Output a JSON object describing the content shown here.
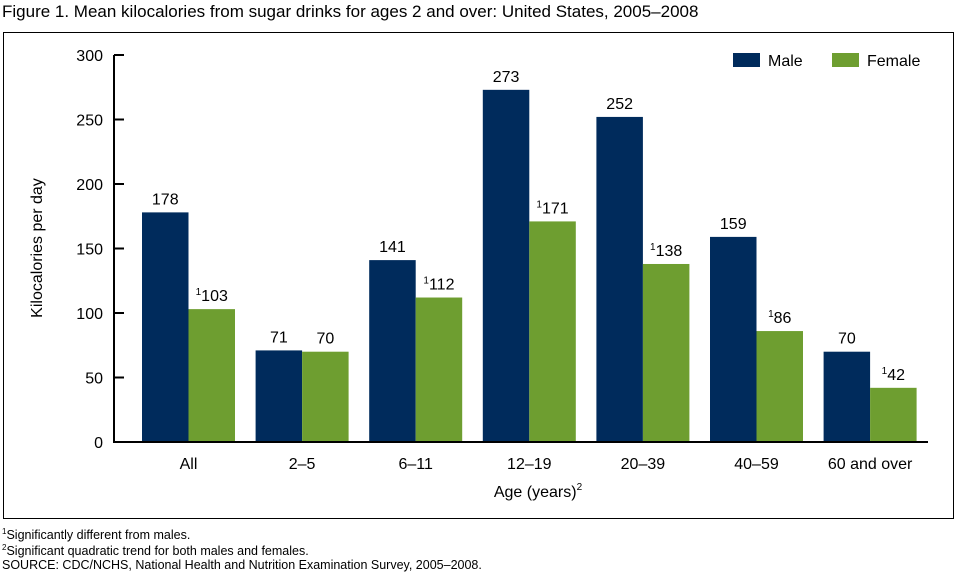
{
  "title": "Figure 1. Mean kilocalories from sugar drinks for ages 2 and over: United States, 2005–2008",
  "footnotes": [
    {
      "mark": "1",
      "text": "Significantly different from males."
    },
    {
      "mark": "2",
      "text": "Significant quadratic trend for both males and females."
    },
    {
      "mark": "",
      "text": "SOURCE: CDC/NCHS, National Health and Nutrition Examination Survey, 2005–2008."
    }
  ],
  "colors": {
    "male": "#002B5C",
    "female": "#6E9E30"
  },
  "chart_data": {
    "type": "bar",
    "title": "Figure 1. Mean kilocalories from sugar drinks for ages 2 and over: United States, 2005–2008",
    "xlabel": "Age (years)",
    "xlabel_superscript": "2",
    "ylabel": "Kilocalories per day",
    "ylim": [
      0,
      300
    ],
    "yticks": [
      0,
      50,
      100,
      150,
      200,
      250,
      300
    ],
    "grid": false,
    "legend": "top-right",
    "categories": [
      "All",
      "2–5",
      "6–11",
      "12–19",
      "20–39",
      "40–59",
      "60 and over"
    ],
    "series": [
      {
        "name": "Male",
        "color": "#002B5C",
        "values": [
          178,
          71,
          141,
          273,
          252,
          159,
          70
        ],
        "label_marks": [
          "",
          "",
          "",
          "",
          "",
          "",
          ""
        ]
      },
      {
        "name": "Female",
        "color": "#6E9E30",
        "values": [
          103,
          70,
          112,
          171,
          138,
          86,
          42
        ],
        "label_marks": [
          "1",
          "",
          "1",
          "1",
          "1",
          "1",
          "1"
        ]
      }
    ]
  }
}
